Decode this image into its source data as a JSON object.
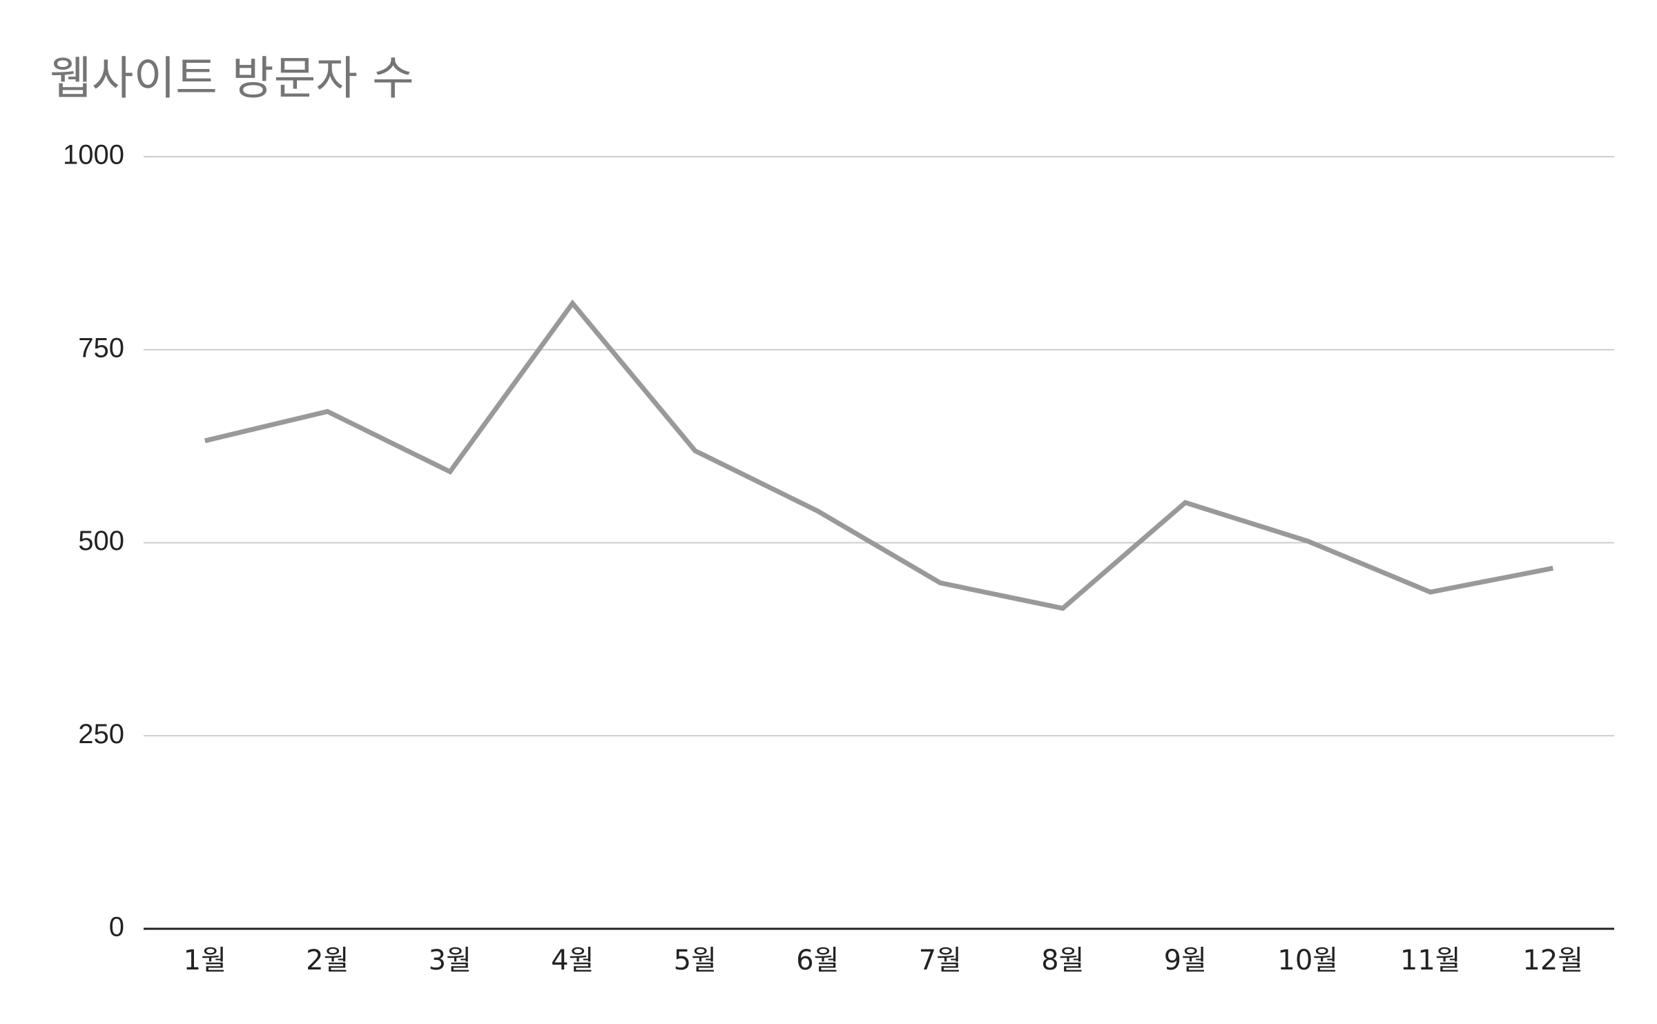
{
  "chart_data": {
    "type": "line",
    "title": "웹사이트 방문자 수",
    "xlabel": "",
    "ylabel": "",
    "categories": [
      "1월",
      "2월",
      "3월",
      "4월",
      "5월",
      "6월",
      "7월",
      "8월",
      "9월",
      "10월",
      "11월",
      "12월"
    ],
    "series": [
      {
        "values": [
          632,
          670,
          592,
          810,
          619,
          541,
          448,
          415,
          552,
          502,
          436,
          467
        ]
      }
    ],
    "ylim": [
      0,
      1000
    ],
    "yticks": [
      0,
      250,
      500,
      750,
      1000
    ],
    "grid": true,
    "legend": "none",
    "colors": {
      "line": "#999999",
      "grid": "#cccccc",
      "axis": "#222222",
      "title": "#757575"
    }
  }
}
